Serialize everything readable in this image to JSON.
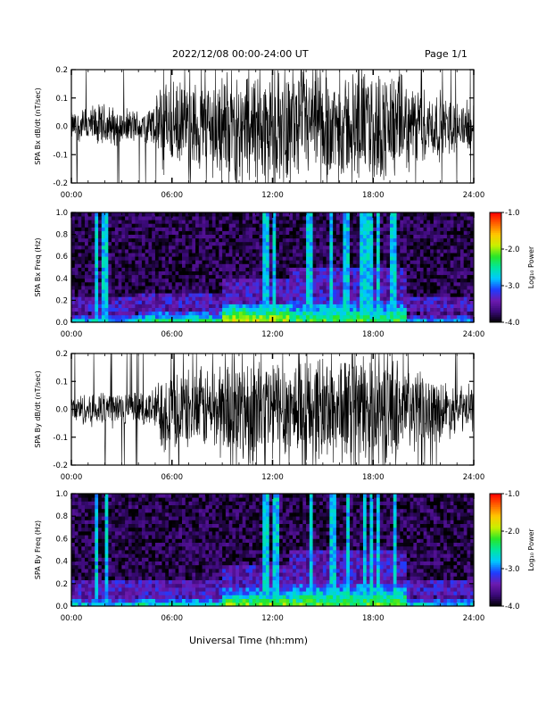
{
  "header": {
    "date_range": "2022/12/08  00:00-24:00 UT",
    "page": "Page 1/1"
  },
  "x_axis_title": "Universal Time (hh:mm)",
  "colorbar": {
    "label": "Log₁₀ Power",
    "ticks": [
      "-1.0",
      "-2.0",
      "-3.0",
      "-4.0"
    ],
    "range": [
      -4.0,
      -1.0
    ],
    "colormap": [
      "#000000",
      "#3a0a78",
      "#6d1ab0",
      "#1e3cff",
      "#00c8ff",
      "#00e6a0",
      "#28e628",
      "#c8f000",
      "#ffc800",
      "#ff6400",
      "#ff0000"
    ]
  },
  "chart_data": [
    {
      "type": "line",
      "ylabel": "SPA Bx dB/dt (nT/sec)",
      "xlim": [
        0,
        24
      ],
      "ylim": [
        -0.2,
        0.2
      ],
      "x_ticks": [
        "00:00",
        "06:00",
        "12:00",
        "18:00",
        "24:00"
      ],
      "y_ticks": [
        "0.2",
        "0.1",
        "0.0",
        "-0.1",
        "-0.2"
      ],
      "series": [
        {
          "x": [
            0,
            1,
            2,
            3,
            4,
            5,
            5.5,
            6,
            7,
            8,
            9,
            10,
            11,
            12,
            13,
            14,
            15,
            16,
            17,
            18,
            19,
            20,
            21,
            22,
            23,
            24
          ],
          "envelope": [
            0.05,
            0.07,
            0.08,
            0.06,
            0.06,
            0.08,
            0.2,
            0.15,
            0.15,
            0.17,
            0.2,
            0.2,
            0.2,
            0.2,
            0.2,
            0.2,
            0.2,
            0.18,
            0.2,
            0.2,
            0.2,
            0.16,
            0.13,
            0.12,
            0.09,
            0.08
          ]
        }
      ]
    },
    {
      "type": "heatmap",
      "ylabel": "SPA Bx Freq (Hz)",
      "xlim": [
        0,
        24
      ],
      "ylim": [
        0.0,
        1.0
      ],
      "x_ticks": [
        "00:00",
        "06:00",
        "12:00",
        "18:00",
        "24:00"
      ],
      "y_ticks": [
        "1.0",
        "0.8",
        "0.6",
        "0.4",
        "0.2",
        "0.0"
      ],
      "log10_power_range": [
        -4.0,
        -1.0
      ],
      "background_log10_power": -3.8,
      "low_freq_enhancement": [
        {
          "x": [
            0,
            4
          ],
          "max_freq": 0.1,
          "log10_power": -2.6
        },
        {
          "x": [
            4,
            9
          ],
          "max_freq": 0.12,
          "log10_power": -2.3
        },
        {
          "x": [
            9,
            13
          ],
          "max_freq": 0.18,
          "log10_power": -1.8
        },
        {
          "x": [
            13,
            20
          ],
          "max_freq": 0.22,
          "log10_power": -2.2
        },
        {
          "x": [
            20,
            24
          ],
          "max_freq": 0.1,
          "log10_power": -2.7
        }
      ],
      "vertical_bursts": [
        1.5,
        2.0,
        11.6,
        12.1,
        14.2,
        15.5,
        16.4,
        17.4,
        17.8,
        18.3,
        19.2
      ]
    },
    {
      "type": "line",
      "ylabel": "SPA By dB/dt (nT/sec)",
      "xlim": [
        0,
        24
      ],
      "ylim": [
        -0.2,
        0.2
      ],
      "x_ticks": [
        "00:00",
        "06:00",
        "12:00",
        "18:00",
        "24:00"
      ],
      "y_ticks": [
        "0.2",
        "0.1",
        "0.0",
        "-0.1",
        "-0.2"
      ],
      "series": [
        {
          "x": [
            0,
            1,
            2,
            3,
            4,
            5,
            5.5,
            6,
            7,
            8,
            9,
            10,
            11,
            12,
            13,
            14,
            15,
            16,
            17,
            18,
            19,
            20,
            21,
            22,
            23,
            24
          ],
          "envelope": [
            0.05,
            0.06,
            0.08,
            0.07,
            0.06,
            0.08,
            0.17,
            0.15,
            0.14,
            0.15,
            0.18,
            0.2,
            0.2,
            0.2,
            0.2,
            0.2,
            0.2,
            0.2,
            0.2,
            0.2,
            0.2,
            0.17,
            0.13,
            0.11,
            0.09,
            0.08
          ]
        }
      ]
    },
    {
      "type": "heatmap",
      "ylabel": "SPA By Freq (Hz)",
      "xlim": [
        0,
        24
      ],
      "ylim": [
        0.0,
        1.0
      ],
      "x_ticks": [
        "00:00",
        "06:00",
        "12:00",
        "18:00",
        "24:00"
      ],
      "y_ticks": [
        "1.0",
        "0.8",
        "0.6",
        "0.4",
        "0.2",
        "0.0"
      ],
      "log10_power_range": [
        -4.0,
        -1.0
      ],
      "background_log10_power": -3.8,
      "low_freq_enhancement": [
        {
          "x": [
            0,
            4
          ],
          "max_freq": 0.1,
          "log10_power": -2.6
        },
        {
          "x": [
            4,
            9
          ],
          "max_freq": 0.1,
          "log10_power": -2.4
        },
        {
          "x": [
            9,
            13
          ],
          "max_freq": 0.16,
          "log10_power": -2.0
        },
        {
          "x": [
            13,
            20
          ],
          "max_freq": 0.22,
          "log10_power": -2.1
        },
        {
          "x": [
            20,
            24
          ],
          "max_freq": 0.1,
          "log10_power": -2.6
        }
      ],
      "vertical_bursts": [
        1.5,
        2.1,
        11.6,
        12.2,
        14.3,
        15.6,
        16.5,
        17.5,
        17.9,
        18.3,
        19.3
      ]
    }
  ]
}
